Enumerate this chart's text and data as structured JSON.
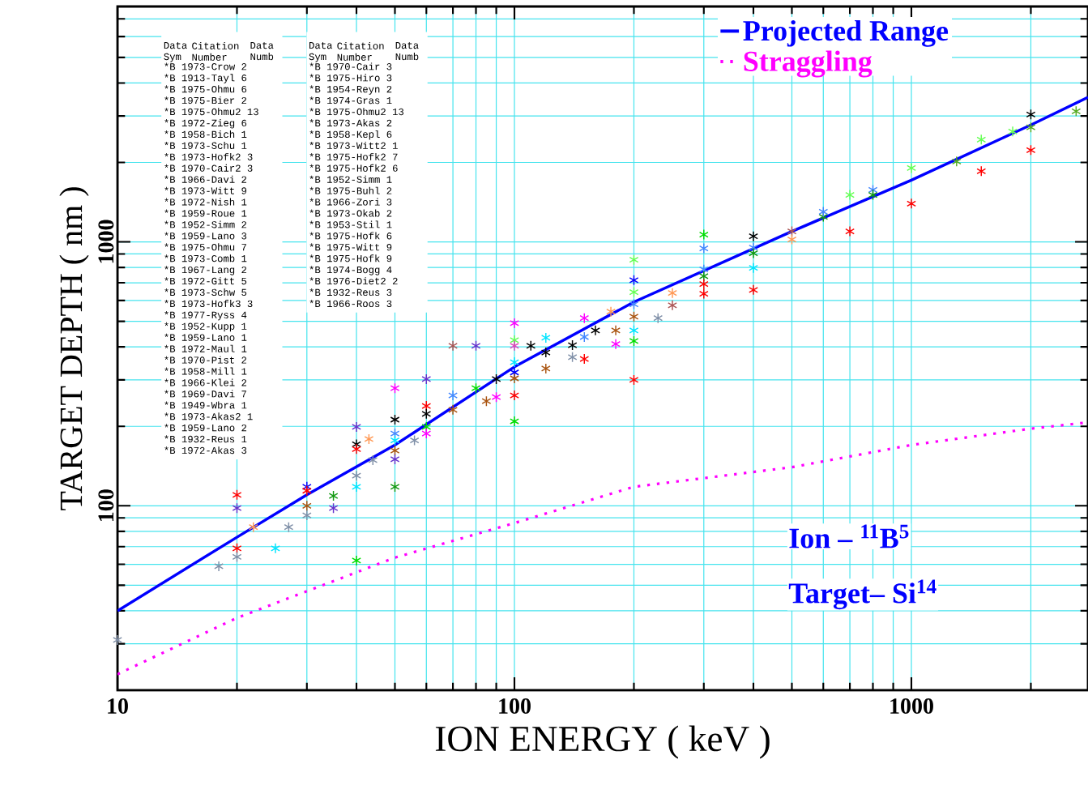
{
  "chart_data": {
    "type": "line",
    "xlabel": "ION ENERGY ( keV )",
    "ylabel": "TARGET DEPTH ( nm )",
    "log": "xy",
    "grid": true,
    "legend": "top right",
    "xlim": [
      10,
      2786
    ],
    "ylim": [
      20,
      7800
    ],
    "xticks": [
      10,
      100,
      1000
    ],
    "yticks": [
      100,
      1000
    ],
    "annotations": [
      "Ion – $^{11}$B$^{5}$",
      "Target– Si$^{14}$",
      "Data Sym",
      "Citation Number",
      "Data Numb",
      "Data Sym",
      "Citation Number",
      "Data Numb",
      "*B 1973-Crow 2",
      "*B 1913-Tayl 6",
      "*B 1975-Ohmu 6",
      "*B 1975-Bier 2",
      "*B 1975-Ohmu2 13",
      "*B 1972-Zieg 6",
      "*B 1958-Bich 1",
      "*B 1973-Schu 1",
      "*B 1973-Hofk2 3",
      "*B 1970-Cair2 3",
      "*B 1966-Davi 2",
      "*B 1973-Witt 9",
      "*B 1972-Nish 1",
      "*B 1959-Roue 1",
      "*B 1952-Simm 2",
      "*B 1959-Lano 3",
      "*B 1975-Ohmu 7",
      "*B 1973-Comb 1",
      "*B 1967-Lang 2",
      "*B 1972-Gitt 5",
      "*B 1973-Schw 5",
      "*B 1973-Hofk3 3",
      "*B 1977-Ryss 4",
      "*B 1952-Kupp 1",
      "*B 1959-Lano 1",
      "*B 1972-Maul 1",
      "*B 1970-Pist 2",
      "*B 1958-Mill 1",
      "*B 1966-Klei 2",
      "*B 1969-Davi 7",
      "*B 1949-Wbra 1",
      "*B 1973-Akas2 1",
      "*B 1959-Lano 2",
      "*B 1932-Reus 1",
      "*B 1972-Akas 3",
      "*B 1970-Cair 3",
      "*B 1975-Hiro 3",
      "*B 1954-Reyn 2",
      "*B 1974-Gras 1",
      "*B 1975-Ohmu2 13",
      "*B 1973-Akas 2",
      "*B 1958-Kepl 6",
      "*B 1973-Witt2 1",
      "*B 1975-Hofk2 7",
      "*B 1975-Hofk2 6",
      "*B 1952-Simm 1",
      "*B 1975-Buhl 2",
      "*B 1966-Zori 3",
      "*B 1973-Okab 2",
      "*B 1953-Stil 1",
      "*B 1975-Hofk 6",
      "*B 1975-Witt 9",
      "*B 1975-Hofk 9",
      "*B 1974-Bogg 4",
      "*B 1976-Diet2 2",
      "*B 1932-Reus 3",
      "*B 1966-Roos 3"
    ],
    "series": [
      {
        "name": "Projected Range",
        "color": "#0000ff",
        "line_style": "solid",
        "x": [
          10,
          20,
          30,
          50,
          100,
          200,
          500,
          1000,
          2000,
          2786
        ],
        "values": [
          40,
          76,
          110,
          170,
          336,
          592,
          1096,
          1713,
          2774,
          3530
        ]
      },
      {
        "name": "Straggling",
        "color": "#ff00ff",
        "line_style": "dotted",
        "x": [
          10,
          20,
          50,
          100,
          200,
          500,
          1000,
          2000,
          2786
        ],
        "values": [
          23,
          37.6,
          63.6,
          86,
          118,
          140,
          170,
          196,
          207
        ]
      },
      {
        "type": "scatter",
        "marker": "cross",
        "x": [
          10,
          20,
          20,
          22,
          20,
          20,
          18,
          25,
          27,
          30,
          30,
          30,
          30,
          35,
          35,
          40,
          40,
          40,
          43,
          44,
          40,
          40,
          40,
          50,
          50,
          50,
          50,
          50,
          50,
          60,
          50,
          60,
          60,
          60,
          60,
          56,
          70,
          70,
          80,
          90,
          85,
          90,
          70,
          80,
          100,
          100,
          100,
          110,
          120,
          100,
          100,
          100,
          100,
          100,
          120,
          120,
          140,
          140,
          150,
          150,
          150,
          180,
          160,
          180,
          175,
          200,
          200,
          200,
          200,
          200,
          200,
          200,
          200,
          250,
          250,
          230,
          300,
          300,
          300,
          300,
          300,
          300,
          400,
          400,
          400,
          400,
          400,
          500,
          500,
          700,
          600,
          600,
          700,
          800,
          800,
          1000,
          1000,
          1500,
          1300,
          1500,
          1800,
          2000,
          2000,
          2000,
          2600
        ],
        "values": [
          31,
          110,
          98,
          83,
          69,
          64,
          59,
          69,
          83,
          118,
          114,
          100,
          92,
          109,
          98,
          199,
          171,
          164,
          179,
          149,
          130,
          118,
          62,
          212,
          188,
          177,
          162,
          150,
          118,
          302,
          279,
          239,
          223,
          199,
          188,
          177,
          231,
          262,
          279,
          302,
          249,
          258,
          404,
          404,
          492,
          424,
          404,
          404,
          433,
          350,
          320,
          304,
          262,
          209,
          381,
          331,
          406,
          366,
          436,
          360,
          514,
          410,
          462,
          462,
          544,
          855,
          716,
          645,
          580,
          521,
          462,
          421,
          300,
          640,
          575,
          514,
          1066,
          945,
          786,
          741,
          692,
          636,
          1050,
          952,
          906,
          797,
          658,
          1096,
          1021,
          1096,
          1245,
          1300,
          1507,
          1574,
          1507,
          1396,
          1905,
          1853,
          2017,
          2441,
          2620,
          2716,
          3040,
          2226,
          3127
        ],
        "colors": [
          "#8090a8",
          "#ff0000",
          "#6633cc",
          "#ff9955",
          "#ff0000",
          "#8090a8",
          "#8090a8",
          "#00e5ff",
          "#8090a8",
          "#0000ff",
          "#ff0000",
          "#aa5511",
          "#8090a8",
          "#119911",
          "#6633cc",
          "#6633cc",
          "#000000",
          "#ff0000",
          "#ff9955",
          "#8090a8",
          "#8090a8",
          "#00e5ff",
          "#00dd00",
          "#000000",
          "#4488ff",
          "#00e5ff",
          "#aa5511",
          "#6633cc",
          "#119911",
          "#6633cc",
          "#ff00ff",
          "#ff0000",
          "#000000",
          "#00dd00",
          "#ff00ff",
          "#8090a8",
          "#aa5511",
          "#4488ff",
          "#00dd00",
          "#000000",
          "#aa5511",
          "#ff00ff",
          "#aa5555",
          "#6633cc",
          "#ff00ff",
          "#66ff55",
          "#dd44bb",
          "#000000",
          "#00e5ff",
          "#00e5ff",
          "#0000ff",
          "#aa5511",
          "#ff0000",
          "#00dd00",
          "#000000",
          "#aa5511",
          "#000000",
          "#8090a8",
          "#4488ff",
          "#ff0000",
          "#ff00ff",
          "#ff00ff",
          "#000000",
          "#aa5511",
          "#ff9955",
          "#66ff55",
          "#0000ff",
          "#66ff55",
          "#4488ff",
          "#aa5511",
          "#00e5ff",
          "#00dd00",
          "#ff0000",
          "#ff9955",
          "#aa5555",
          "#8090a8",
          "#00dd00",
          "#4488ff",
          "#4488ff",
          "#119911",
          "#ff0000",
          "#ff0000",
          "#000000",
          "#4488ff",
          "#119911",
          "#00e5ff",
          "#ff0000",
          "#aa5555",
          "#ff9955",
          "#ff0000",
          "#119911",
          "#4488ff",
          "#66ff55",
          "#4488ff",
          "#119911",
          "#ff0000",
          "#66ff55",
          "#ff0000",
          "#55aa22",
          "#66ff55",
          "#66ff55",
          "#55aa22",
          "#000000",
          "#ff0000",
          "#55aa22"
        ]
      }
    ]
  }
}
